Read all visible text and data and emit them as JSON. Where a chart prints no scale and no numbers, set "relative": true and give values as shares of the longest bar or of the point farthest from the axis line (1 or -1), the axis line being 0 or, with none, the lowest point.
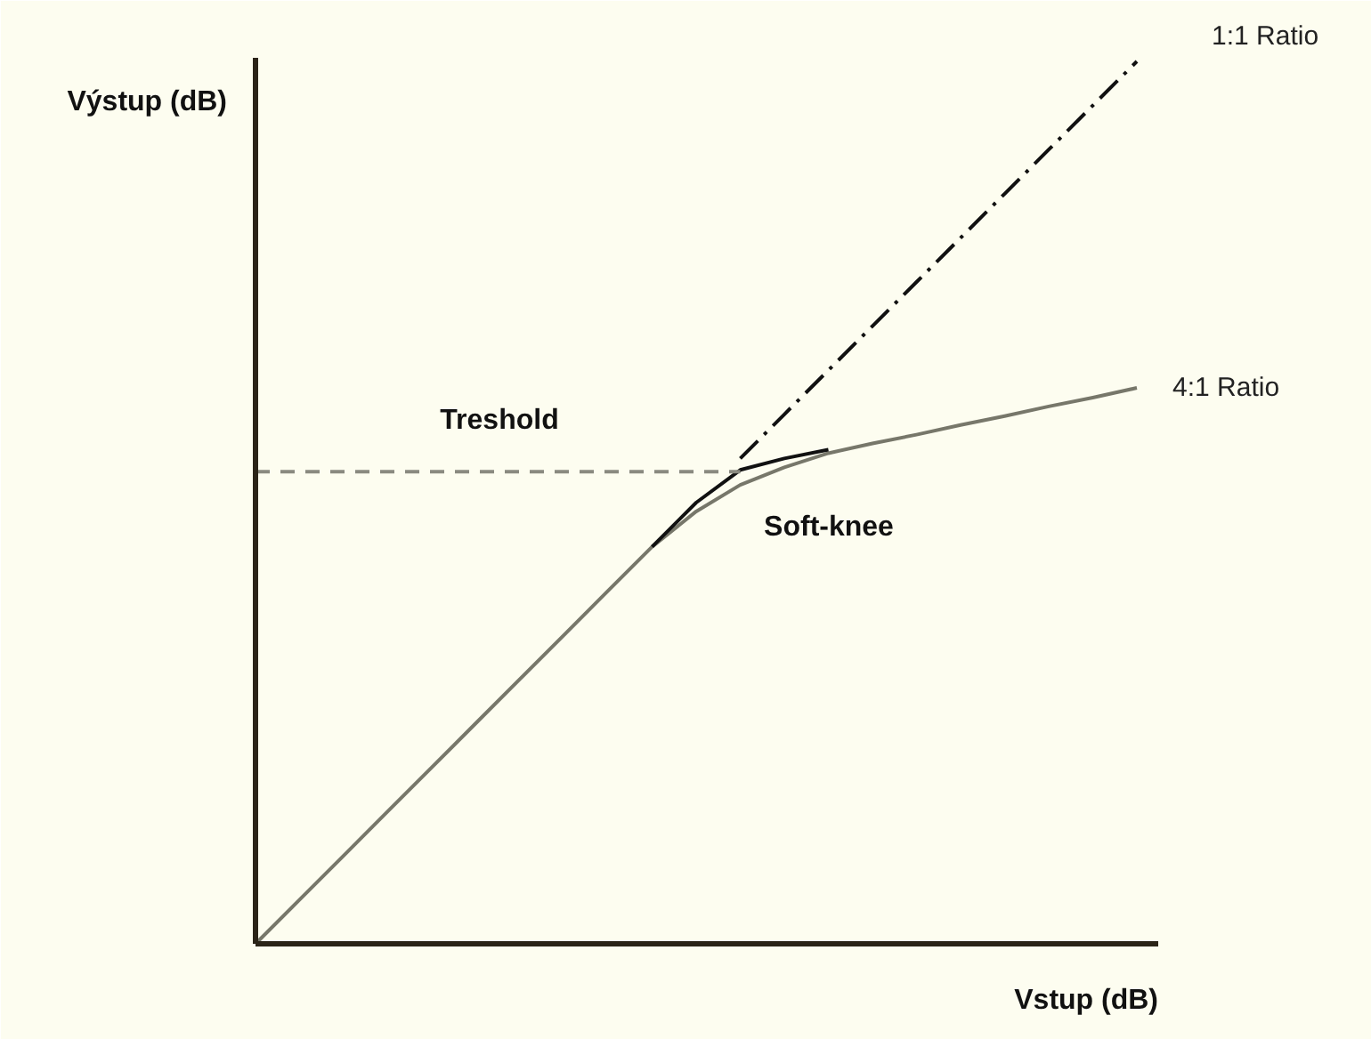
{
  "chart_data": {
    "type": "line",
    "relative": true,
    "xlabel": "Vstup (dB)",
    "ylabel": "Výstup (dB)",
    "categories": [
      null,
      null,
      null,
      null,
      null,
      null,
      null,
      null,
      null,
      null,
      null,
      null,
      null,
      null,
      null,
      null,
      null,
      null,
      null,
      null,
      null
    ],
    "annotations": [
      "Treshold",
      "Soft-knee"
    ],
    "series": [
      {
        "name": "1:1 Ratio",
        "color": "#111111",
        "line_style": "dashdot",
        "values": [
          null,
          null,
          null,
          null,
          null,
          null,
          null,
          null,
          null,
          null,
          null,
          0.55,
          0.6,
          0.65,
          0.7,
          0.75,
          0.8,
          0.85,
          0.9,
          0.95,
          1.0
        ]
      },
      {
        "name": "4:1 Ratio",
        "color": "#77776a",
        "line_style": "solid",
        "values": [
          0,
          0.05,
          0.1,
          0.15,
          0.2,
          0.25,
          0.3,
          0.35,
          0.4,
          0.45,
          0.49,
          0.52,
          0.54,
          0.556,
          0.567,
          0.577,
          0.588,
          0.598,
          0.609,
          0.619,
          0.63
        ]
      },
      {
        "color": "#111111",
        "line_style": "solid",
        "values": [
          null,
          null,
          null,
          null,
          null,
          null,
          null,
          null,
          null,
          0.45,
          0.5,
          0.537,
          0.55,
          0.56,
          null,
          null,
          null,
          null,
          null,
          null,
          null
        ]
      },
      {
        "color": "#8a8a80",
        "line_style": "dashed",
        "values": [
          0.535,
          0.535,
          0.535,
          0.535,
          0.535,
          0.535,
          0.535,
          0.535,
          0.535,
          0.535,
          0.535,
          0.535,
          null,
          null,
          null,
          null,
          null,
          null,
          null,
          null,
          null
        ]
      }
    ]
  }
}
